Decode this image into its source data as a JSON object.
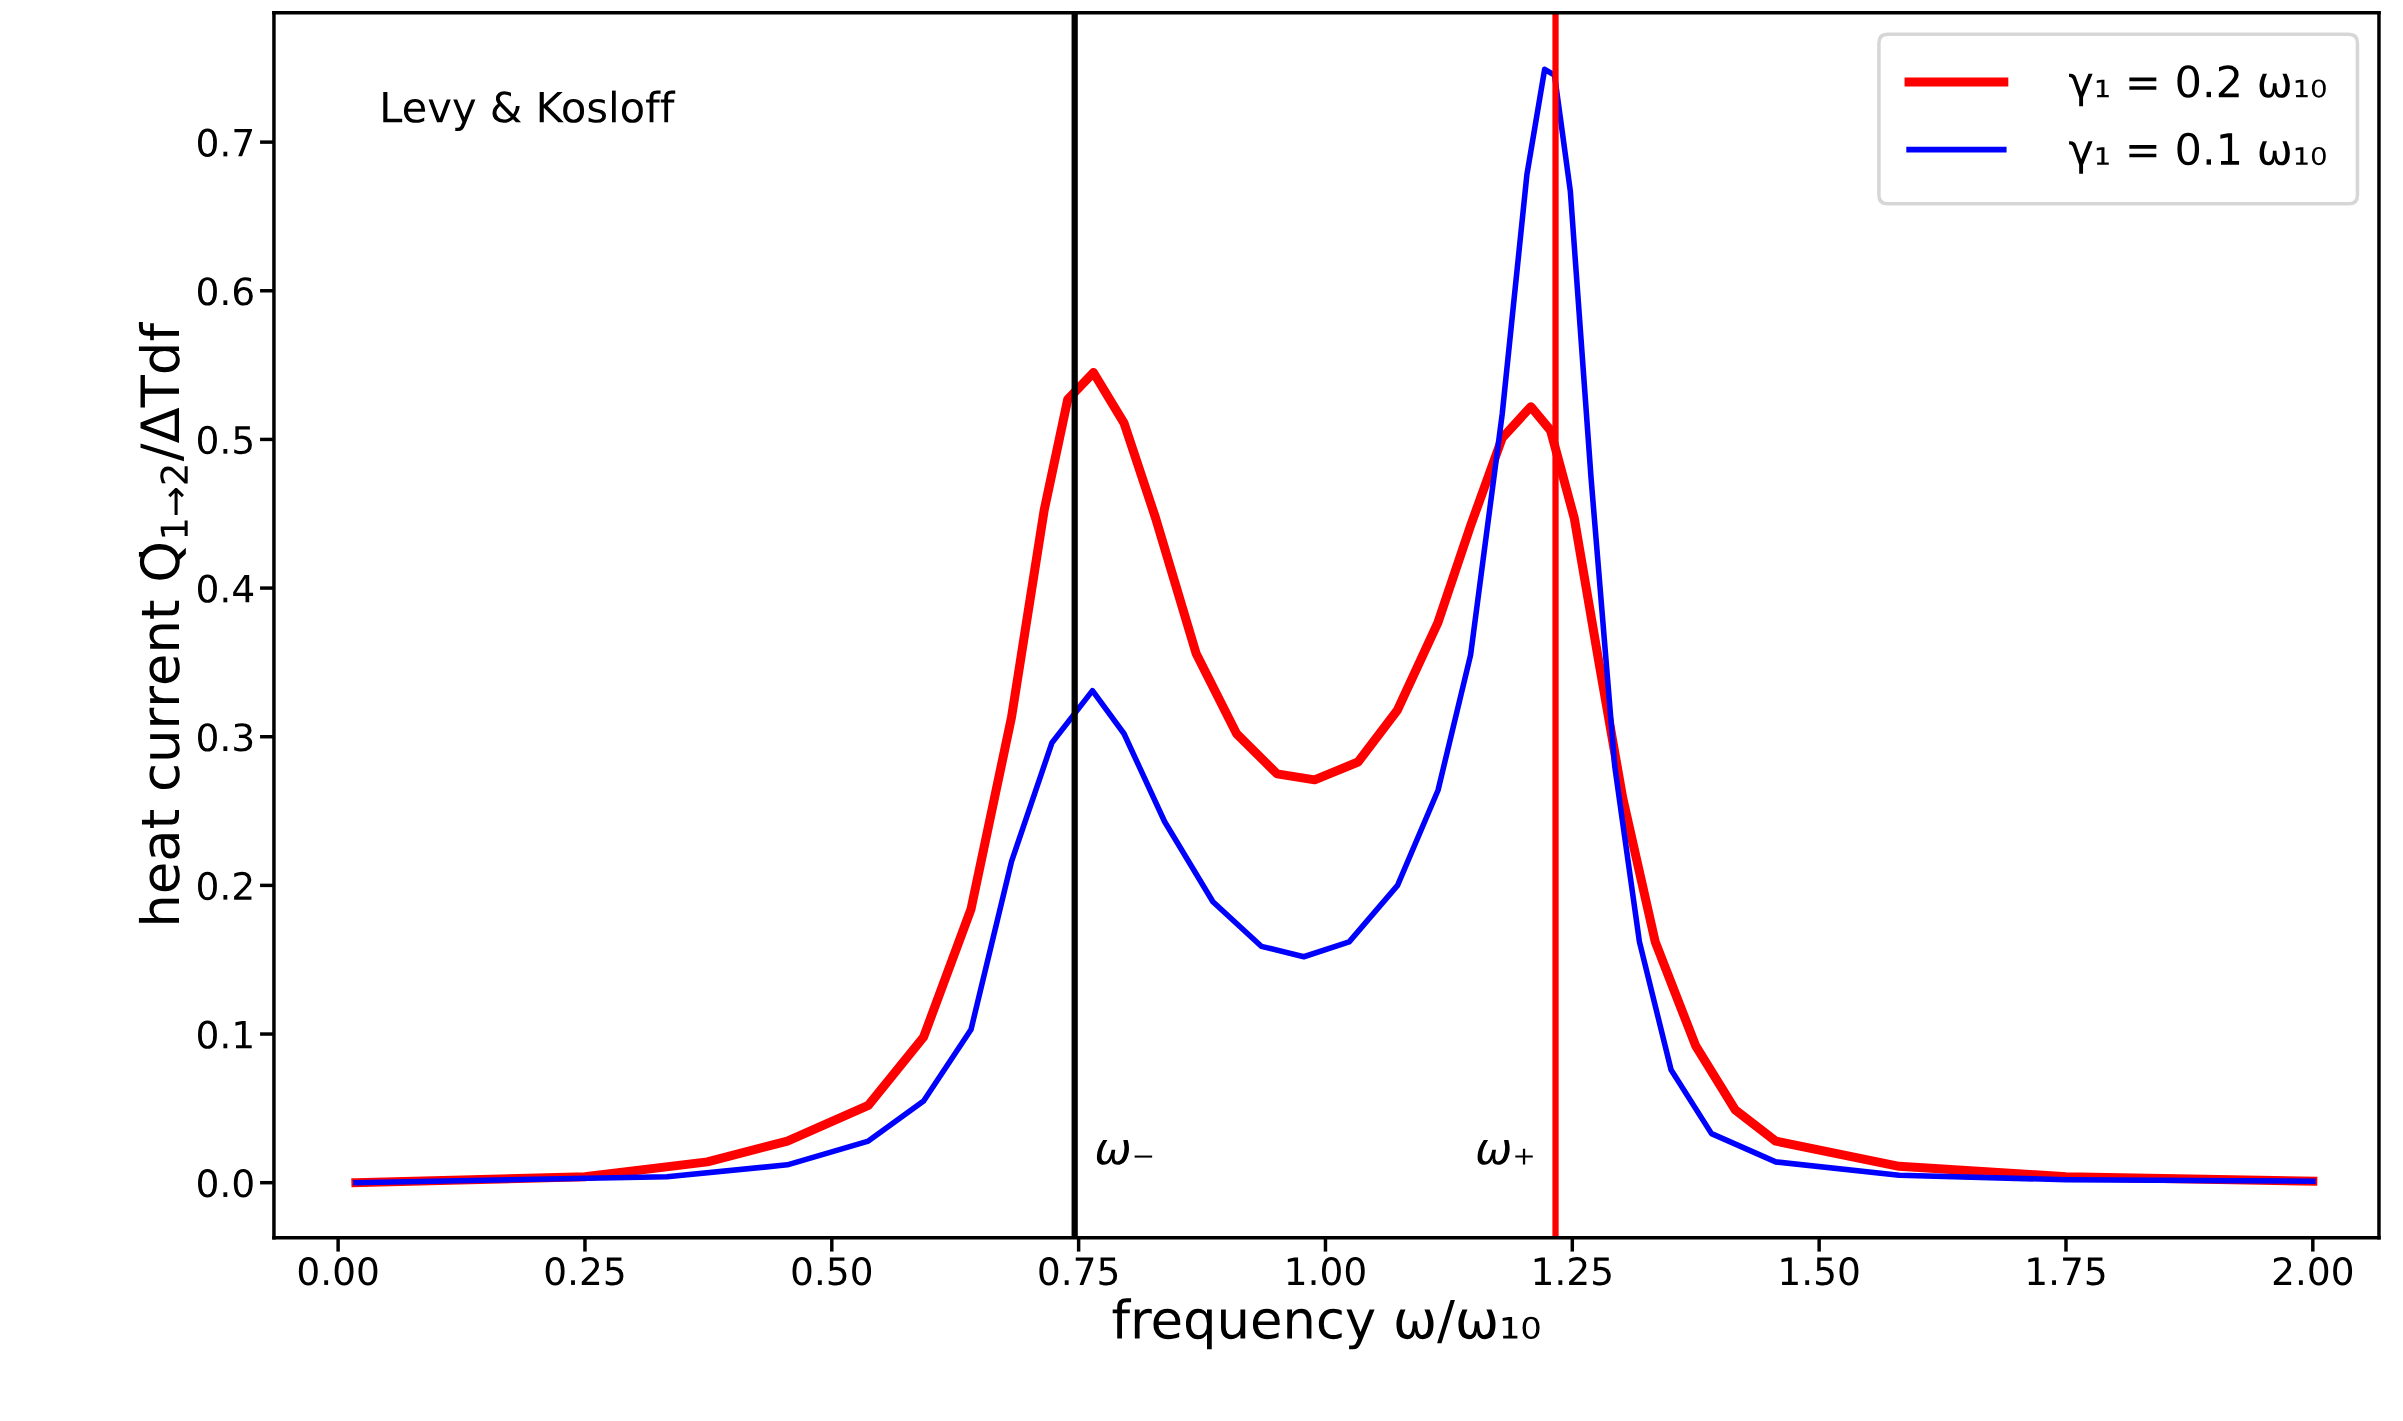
{
  "chart_data": {
    "type": "line",
    "xlabel": "frequency ω/ω₁₀",
    "ylabel": "heat current Q̇$_{1→2}$/ΔTdf",
    "annotations": [
      "Levy & Kosloff"
    ],
    "series": [
      {
        "name": "γ₁ = 0.2 ω₁₀",
        "color": "#ff0000",
        "x": [
          0.018,
          0.25,
          0.374,
          0.455,
          0.537,
          0.593,
          0.641,
          0.682,
          0.715,
          0.739,
          0.765,
          0.796,
          0.828,
          0.869,
          0.91,
          0.951,
          0.989,
          1.033,
          1.073,
          1.114,
          1.147,
          1.179,
          1.208,
          1.228,
          1.252,
          1.277,
          1.301,
          1.334,
          1.375,
          1.415,
          1.456,
          1.581,
          1.75,
          2.0
        ],
        "values": [
          0.0,
          0.004,
          0.014,
          0.028,
          0.052,
          0.098,
          0.184,
          0.313,
          0.452,
          0.527,
          0.545,
          0.511,
          0.447,
          0.356,
          0.302,
          0.275,
          0.271,
          0.283,
          0.318,
          0.377,
          0.442,
          0.501,
          0.522,
          0.506,
          0.447,
          0.35,
          0.259,
          0.162,
          0.092,
          0.049,
          0.028,
          0.011,
          0.004,
          0.001
        ]
      },
      {
        "name": "γ₁ = 0.1 ω₁₀",
        "color": "#0000ff",
        "x": [
          0.018,
          0.333,
          0.455,
          0.537,
          0.593,
          0.641,
          0.682,
          0.723,
          0.764,
          0.796,
          0.837,
          0.886,
          0.935,
          0.978,
          1.024,
          1.073,
          1.114,
          1.147,
          1.179,
          1.204,
          1.222,
          1.232,
          1.248,
          1.269,
          1.293,
          1.318,
          1.35,
          1.391,
          1.456,
          1.581,
          1.75,
          2.0
        ],
        "values": [
          0.0,
          0.004,
          0.012,
          0.028,
          0.055,
          0.103,
          0.216,
          0.296,
          0.331,
          0.302,
          0.243,
          0.189,
          0.159,
          0.152,
          0.162,
          0.2,
          0.264,
          0.355,
          0.517,
          0.678,
          0.749,
          0.745,
          0.667,
          0.474,
          0.28,
          0.162,
          0.076,
          0.033,
          0.014,
          0.005,
          0.002,
          0.001
        ]
      }
    ],
    "ref_lines": [
      {
        "axis": "x",
        "value": 0.746,
        "label": "ω₋",
        "color": "#000000"
      },
      {
        "axis": "x",
        "value": 1.233,
        "label": "ω₊",
        "color": "#ff0000"
      }
    ],
    "xlim": [
      -0.065,
      2.067
    ],
    "ylim": [
      -0.037,
      0.787
    ],
    "xticks": [
      {
        "value": 0,
        "label": "0.00"
      },
      0.25,
      {
        "value": 0.5,
        "label": "0.50"
      },
      0.75,
      {
        "value": 1,
        "label": "1.00"
      },
      1.25,
      {
        "value": 1.5,
        "label": "1.50"
      },
      1.75,
      {
        "value": 2,
        "label": "2.00"
      }
    ],
    "yticks": [
      {
        "value": 0,
        "label": "0.0"
      },
      0.1,
      0.2,
      0.3,
      0.4,
      0.5,
      0.6,
      0.7
    ],
    "grid": false,
    "legend": "top right",
    "marker": "none",
    "line_style": "solid"
  }
}
